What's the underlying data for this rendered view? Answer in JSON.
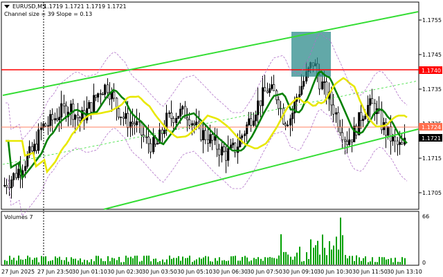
{
  "header": {
    "symbol": "EURUSD,M5",
    "ohlc": "1.1719 1.1721 1.1719 1.1721",
    "channel_info": "Channel size = 39 Slope = 0.13",
    "arrow_icon": "triangle-down-icon"
  },
  "price_axis": {
    "ticks": [
      "1.1755",
      "1.1745",
      "1.1735",
      "1.1725",
      "1.1715",
      "1.1705"
    ],
    "labels": [
      {
        "text": "1.1740",
        "bg": "#ff0000",
        "fg": "#ffffff"
      },
      {
        "text": "1.1724",
        "bg": "#ff6f4f",
        "fg": "#ffffff"
      },
      {
        "text": "1.1721",
        "bg": "#000000",
        "fg": "#ffffff"
      }
    ]
  },
  "volumes": {
    "title": "Volumes 7",
    "max": "66",
    "zero": "0"
  },
  "time_axis": {
    "ticks": [
      "27 Jun 2025",
      "27 Jun 23:50",
      "30 Jun 01:10",
      "30 Jun 02:30",
      "30 Jun 03:50",
      "30 Jun 05:10",
      "30 Jun 06:30",
      "30 Jun 07:50",
      "30 Jun 09:10",
      "30 Jun 10:30",
      "30 Jun 11:50",
      "30 Jun 13:10"
    ]
  },
  "colors": {
    "up_candle": "#000000",
    "channel": "#33dd33",
    "resistance": "#ff0000",
    "support": "#ff8060",
    "ma_green": "#008000",
    "ma_yellow": "#e8e800",
    "bands": "#b070c8",
    "box": "#2e8b8b",
    "volume": "#00a000"
  }
}
